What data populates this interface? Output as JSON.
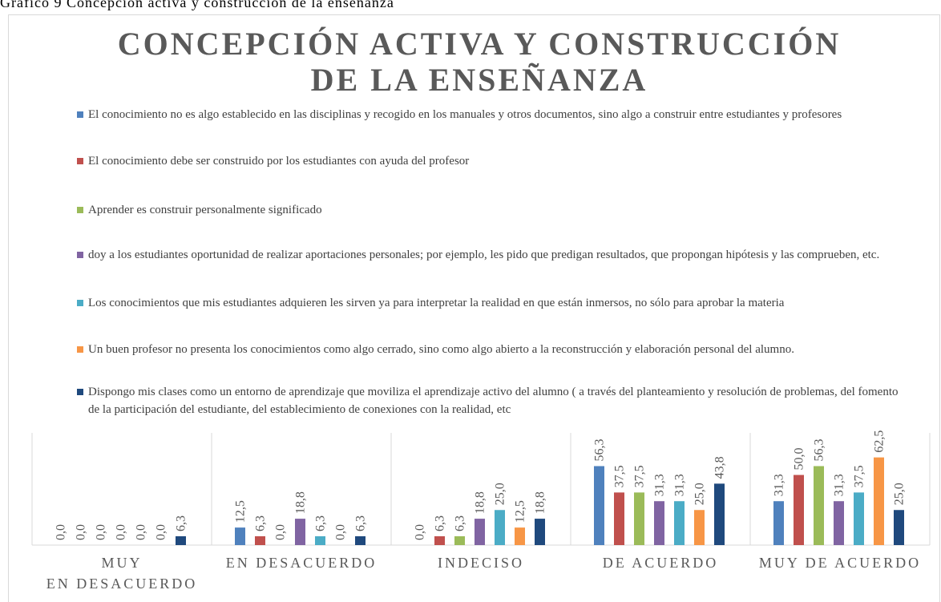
{
  "caption": "Gráfico 9 Concepción activa y construcción de la enseñanza",
  "chart_data": {
    "type": "bar",
    "title": "CONCEPCIÓN ACTIVA Y CONSTRUCCIÓN DE LA ENSEÑANZA",
    "categories": [
      "MUY EN DESACUERDO",
      "EN DESACUERDO",
      "INDECISO",
      "DE ACUERDO",
      "MUY DE ACUERDO"
    ],
    "ylim": [
      0,
      80
    ],
    "series": [
      {
        "name": "El conocimiento no es algo establecido en las disciplinas y recogido en los manuales y otros documentos, sino algo a construir entre estudiantes y profesores",
        "color": "#4f81bd",
        "values": [
          0,
          12.5,
          0,
          56.3,
          31.3
        ],
        "value_labels": [
          "0,0",
          "12,5",
          "0,0",
          "56,3",
          "31,3"
        ]
      },
      {
        "name": "El conocimiento debe ser construido por los estudiantes con ayuda del profesor",
        "color": "#c0504d",
        "values": [
          0,
          6.3,
          6.3,
          37.5,
          50.0
        ],
        "value_labels": [
          "0,0",
          "6,3",
          "6,3",
          "37,5",
          "50,0"
        ]
      },
      {
        "name": "Aprender es construir personalmente significado",
        "color": "#9bbb59",
        "values": [
          0,
          0,
          6.3,
          37.5,
          56.3
        ],
        "value_labels": [
          "0,0",
          "0,0",
          "6,3",
          "37,5",
          "56,3"
        ]
      },
      {
        "name": "doy a los estudiantes oportunidad de realizar aportaciones personales; por ejemplo, les pido que predigan resultados, que propongan hipótesis y las comprueben, etc.",
        "color": "#8064a2",
        "values": [
          0,
          18.8,
          18.8,
          31.3,
          31.3
        ],
        "value_labels": [
          "0,0",
          "18,8",
          "18,8",
          "31,3",
          "31,3"
        ]
      },
      {
        "name": "Los conocimientos que mis estudiantes adquieren les sirven ya para interpretar la realidad en que están inmersos, no sólo para aprobar la materia",
        "color": "#4bacc6",
        "values": [
          0,
          6.3,
          25.0,
          31.3,
          37.5
        ],
        "value_labels": [
          "0,0",
          "6,3",
          "25,0",
          "31,3",
          "37,5"
        ]
      },
      {
        "name": "Un buen profesor no presenta los conocimientos como algo cerrado, sino como algo abierto a la reconstrucción y elaboración personal del alumno.",
        "color": "#f79646",
        "values": [
          0,
          0,
          12.5,
          25.0,
          62.5
        ],
        "value_labels": [
          "0,0",
          "0,0",
          "12,5",
          "25,0",
          "62,5"
        ]
      },
      {
        "name": "Dispongo mis clases como un entorno de aprendizaje que moviliza el aprendizaje activo del alumno ( a través del planteamiento y resolución de problemas, del fomento de la participación del estudiante, del establecimiento de conexiones con la realidad, etc",
        "color": "#1f497d",
        "values": [
          6.3,
          6.3,
          18.8,
          43.8,
          25.0
        ],
        "value_labels": [
          "6,3",
          "6,3",
          "18,8",
          "43,8",
          "25,0"
        ]
      }
    ]
  }
}
